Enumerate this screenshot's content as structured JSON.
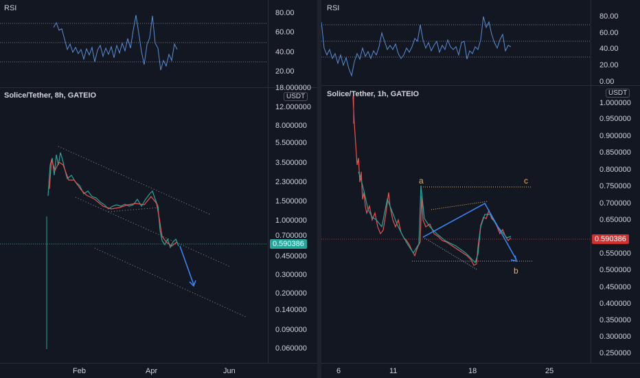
{
  "colors": {
    "background": "#131722",
    "rsi_line": "#5b8fd9",
    "bull": "#26a69a",
    "bear": "#ef5350",
    "price_tag_left": "#26a69a",
    "price_tag_right": "#d32f2f",
    "wave_label": "#f7b34a",
    "channel": "#9598a1",
    "arrow": "#3d8bfd"
  },
  "left": {
    "rsi": {
      "title": "RSI",
      "axis": [
        "80.00",
        "60.00",
        "40.00",
        "20.00"
      ],
      "bottom_label": "18.000000"
    },
    "chart": {
      "title": "Solice/Tether, 8h, GATEIO",
      "currency": "USDT",
      "axis": [
        "12.000000",
        "8.000000",
        "5.500000",
        "3.500000",
        "2.300000",
        "1.500000",
        "1.000000",
        "0.700000",
        "0.450000",
        "0.300000",
        "0.200000",
        "0.140000",
        "0.090000",
        "0.060000"
      ],
      "price": "0.590386",
      "time_axis": [
        "Feb",
        "Apr",
        "Jun"
      ]
    }
  },
  "right": {
    "rsi": {
      "title": "RSI",
      "axis": [
        "80.00",
        "60.00",
        "40.00",
        "20.00",
        "0.00"
      ]
    },
    "chart": {
      "title": "Solice/Tether, 1h, GATEIO",
      "currency": "USDT",
      "axis": [
        "1.000000",
        "0.950000",
        "0.900000",
        "0.850000",
        "0.800000",
        "0.750000",
        "0.700000",
        "0.650000",
        "0.550000",
        "0.500000",
        "0.450000",
        "0.400000",
        "0.350000",
        "0.300000",
        "0.250000"
      ],
      "price": "0.590386",
      "wave_labels": {
        "a": "a",
        "b": "b",
        "c": "c"
      },
      "time_axis": [
        "6",
        "11",
        "18",
        "25"
      ]
    }
  }
}
